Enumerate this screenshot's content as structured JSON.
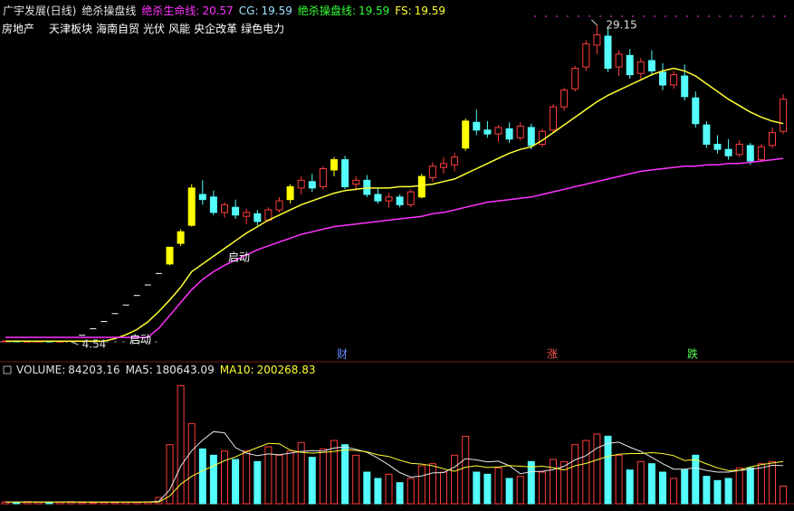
{
  "chart_data": [
    {
      "type": "candlestick",
      "title": "广宇发展(日线)",
      "subtitle": "绝杀操盘线",
      "indicators": [
        {
          "label": "绝杀生命线:",
          "value": 20.57,
          "color": "#ff33ff"
        },
        {
          "label": "CG:",
          "value": 19.59,
          "color": "#a0e0ff"
        },
        {
          "label": "绝杀操盘线:",
          "value": 19.59,
          "color": "#33ff33"
        },
        {
          "label": "FS:",
          "value": 19.59,
          "color": "#ffff33"
        }
      ],
      "tags": [
        "房地产",
        "天津板块",
        "海南自贸",
        "光伏",
        "风能",
        "央企改革",
        "绿色电力"
      ],
      "annotations": [
        "启动",
        "启动"
      ],
      "markers": [
        {
          "text": "财",
          "color": "#6a8cff"
        },
        {
          "text": "涨",
          "color": "#ff5555"
        },
        {
          "text": "跌",
          "color": "#55ff55"
        }
      ],
      "ylim": [
        3,
        29.7
      ],
      "up_color": "#ff3c3c",
      "down_color": "#54fcfc",
      "flat_color": "#ffffff",
      "signal_color": "#ffff00",
      "signal_days": [
        15,
        16,
        17,
        26,
        30,
        38,
        42
      ],
      "open": [
        4.6,
        4.62,
        4.58,
        4.6,
        4.61,
        4.59,
        4.6,
        5.06,
        5.57,
        6.12,
        6.74,
        7.41,
        8.15,
        8.97,
        9.86,
        10.6,
        12.2,
        13.6,
        16.0,
        15.8,
        14.6,
        15.0,
        14.3,
        14.5,
        14.0,
        14.8,
        15.6,
        16.5,
        17.0,
        16.6,
        17.9,
        18.7,
        16.8,
        17.1,
        16.0,
        15.5,
        15.8,
        15.2,
        15.8,
        17.3,
        18.1,
        18.3,
        19.6,
        21.6,
        21.0,
        20.7,
        21.1,
        20.4,
        21.2,
        19.9,
        21.0,
        22.8,
        24.2,
        25.9,
        27.6,
        28.3,
        25.9,
        26.8,
        25.4,
        26.4,
        25.5,
        24.5,
        25.2,
        23.5,
        21.4,
        19.9,
        19.5,
        19.1,
        19.8,
        18.7,
        19.8,
        20.9
      ],
      "high": [
        4.65,
        4.66,
        4.63,
        4.64,
        4.65,
        4.63,
        4.62,
        5.06,
        5.57,
        6.12,
        6.74,
        7.41,
        8.15,
        8.97,
        9.86,
        11.9,
        13.3,
        16.8,
        17.1,
        16.3,
        15.4,
        15.6,
        14.9,
        14.8,
        15.0,
        15.8,
        16.8,
        17.4,
        17.6,
        18.2,
        18.9,
        19.0,
        17.4,
        17.5,
        16.5,
        16.1,
        16.0,
        16.4,
        17.6,
        18.5,
        18.9,
        19.2,
        21.9,
        22.6,
        21.7,
        21.4,
        21.6,
        21.6,
        21.5,
        21.1,
        23.0,
        24.3,
        26.0,
        28.0,
        29.15,
        28.9,
        27.2,
        27.3,
        26.6,
        27.2,
        26.2,
        25.6,
        26.1,
        24.0,
        21.7,
        20.6,
        20.3,
        20.2,
        20.0,
        19.9,
        21.2,
        23.8
      ],
      "low": [
        4.56,
        4.58,
        4.55,
        4.56,
        4.57,
        4.55,
        4.54,
        5.06,
        5.57,
        6.12,
        6.74,
        7.41,
        8.15,
        8.97,
        9.86,
        10.5,
        12.0,
        13.5,
        15.2,
        14.4,
        14.2,
        14.1,
        13.7,
        13.6,
        13.9,
        14.6,
        15.3,
        16.0,
        16.2,
        16.4,
        17.4,
        16.4,
        16.3,
        15.8,
        15.3,
        15.0,
        15.0,
        15.0,
        15.7,
        17.0,
        17.6,
        17.8,
        19.4,
        20.6,
        20.4,
        20.1,
        20.0,
        20.2,
        19.5,
        19.7,
        20.8,
        22.5,
        24.0,
        25.6,
        26.9,
        25.5,
        25.2,
        25.0,
        24.9,
        25.2,
        24.1,
        24.2,
        23.3,
        21.2,
        19.6,
        19.2,
        18.7,
        18.9,
        18.3,
        18.5,
        19.6,
        20.7
      ],
      "close": [
        4.62,
        4.58,
        4.6,
        4.61,
        4.59,
        4.6,
        4.6,
        5.06,
        5.57,
        6.12,
        6.74,
        7.41,
        8.15,
        8.97,
        9.86,
        11.9,
        13.1,
        16.5,
        15.6,
        14.6,
        15.2,
        14.4,
        14.6,
        13.9,
        14.8,
        15.5,
        16.6,
        17.1,
        16.5,
        18.0,
        18.7,
        16.6,
        17.1,
        16.0,
        15.5,
        15.8,
        15.2,
        16.2,
        17.4,
        18.2,
        18.4,
        18.9,
        21.7,
        21.0,
        20.7,
        21.2,
        20.3,
        21.3,
        19.8,
        20.9,
        22.8,
        24.1,
        25.8,
        27.7,
        28.4,
        25.8,
        26.9,
        25.3,
        26.3,
        25.6,
        24.5,
        25.3,
        23.6,
        21.5,
        19.9,
        19.5,
        19.0,
        19.9,
        18.6,
        19.7,
        20.8,
        23.4
      ],
      "series": [
        {
          "color": "#ffff33",
          "values": [
            4.6,
            4.6,
            4.6,
            4.6,
            4.6,
            4.6,
            4.6,
            4.6,
            4.6,
            4.6,
            4.8,
            5.1,
            5.5,
            6.1,
            6.9,
            7.8,
            8.8,
            10.0,
            10.6,
            11.2,
            11.8,
            12.4,
            13.0,
            13.5,
            14.0,
            14.4,
            14.8,
            15.2,
            15.5,
            15.8,
            16.1,
            16.3,
            16.4,
            16.5,
            16.5,
            16.5,
            16.6,
            16.6,
            16.7,
            16.8,
            17.0,
            17.2,
            17.6,
            18.0,
            18.4,
            18.8,
            19.2,
            19.5,
            19.7,
            20.2,
            20.8,
            21.4,
            22.0,
            22.6,
            23.2,
            23.7,
            24.1,
            24.5,
            24.9,
            25.3,
            25.6,
            25.8,
            25.6,
            25.2,
            24.6,
            24.0,
            23.4,
            22.9,
            22.4,
            22.0,
            21.7,
            21.5
          ]
        },
        {
          "color": "#ff33ff",
          "values": [
            4.9,
            4.9,
            4.9,
            4.9,
            4.9,
            4.9,
            4.9,
            4.9,
            4.9,
            4.9,
            4.9,
            4.9,
            4.9,
            4.9,
            5.6,
            6.6,
            7.6,
            8.6,
            9.4,
            10.0,
            10.5,
            10.9,
            11.3,
            11.7,
            12.0,
            12.3,
            12.6,
            12.9,
            13.1,
            13.3,
            13.5,
            13.6,
            13.7,
            13.8,
            13.9,
            14.0,
            14.1,
            14.2,
            14.3,
            14.5,
            14.6,
            14.8,
            15.0,
            15.2,
            15.4,
            15.5,
            15.6,
            15.7,
            15.8,
            16.0,
            16.2,
            16.4,
            16.6,
            16.8,
            17.0,
            17.2,
            17.4,
            17.6,
            17.8,
            17.9,
            18.0,
            18.1,
            18.2,
            18.2,
            18.3,
            18.3,
            18.4,
            18.4,
            18.5,
            18.6,
            18.7,
            18.8
          ]
        }
      ]
    },
    {
      "type": "bar",
      "name": "VOLUME:",
      "ylim": [
        0,
        600000
      ],
      "values": [
        9000,
        8000,
        10000,
        9000,
        8000,
        9000,
        10000,
        6000,
        5000,
        7000,
        6000,
        8000,
        7000,
        9000,
        30000,
        280000,
        560000,
        380000,
        260000,
        230000,
        250000,
        210000,
        250000,
        200000,
        270000,
        230000,
        250000,
        290000,
        220000,
        260000,
        300000,
        280000,
        230000,
        150000,
        120000,
        140000,
        100000,
        120000,
        180000,
        190000,
        150000,
        230000,
        320000,
        150000,
        140000,
        170000,
        120000,
        130000,
        200000,
        150000,
        210000,
        200000,
        280000,
        300000,
        330000,
        320000,
        230000,
        160000,
        200000,
        190000,
        150000,
        120000,
        160000,
        230000,
        130000,
        110000,
        120000,
        170000,
        170000,
        190000,
        200000,
        84203.16
      ],
      "series": [
        {
          "name": "MA5:",
          "color": "#e8e8e8",
          "values": [
            8000,
            8000,
            8000,
            8000,
            8000,
            8000,
            8000,
            8000,
            8000,
            8000,
            8000,
            8000,
            8000,
            8000,
            12000,
            66000,
            178000,
            251000,
            302000,
            342000,
            336000,
            266000,
            240000,
            228000,
            236000,
            232000,
            240000,
            248000,
            252000,
            250000,
            264000,
            270000,
            258000,
            244000,
            216000,
            184000,
            148000,
            126000,
            132000,
            146000,
            148000,
            174000,
            214000,
            208000,
            198000,
            202000,
            180000,
            142000,
            152000,
            154000,
            162000,
            178000,
            208000,
            228000,
            264000,
            286000,
            292000,
            268000,
            248000,
            220000,
            190000,
            164000,
            164000,
            170000,
            158000,
            150000,
            150000,
            158000,
            164000,
            170000,
            182000,
            180643.09
          ]
        },
        {
          "name": "MA10:",
          "color": "#ffff33",
          "values": [
            8000,
            8000,
            8000,
            8000,
            8000,
            8000,
            8000,
            8000,
            8000,
            8000,
            8000,
            8000,
            8000,
            8000,
            8000,
            37000,
            93000,
            130000,
            156000,
            180000,
            204000,
            222000,
            246000,
            266000,
            286000,
            284000,
            254000,
            244000,
            240000,
            243000,
            248000,
            256000,
            253000,
            246000,
            232000,
            224000,
            206000,
            192000,
            188000,
            180000,
            166000,
            154000,
            173000,
            180000,
            172000,
            174000,
            181000,
            178000,
            175000,
            178000,
            171000,
            160000,
            180000,
            191000,
            208000,
            225000,
            235000,
            238000,
            238000,
            242000,
            238000,
            228000,
            205000,
            209000,
            189000,
            170000,
            157000,
            159000,
            175000,
            185000,
            193000,
            200268.83
          ]
        }
      ]
    }
  ]
}
